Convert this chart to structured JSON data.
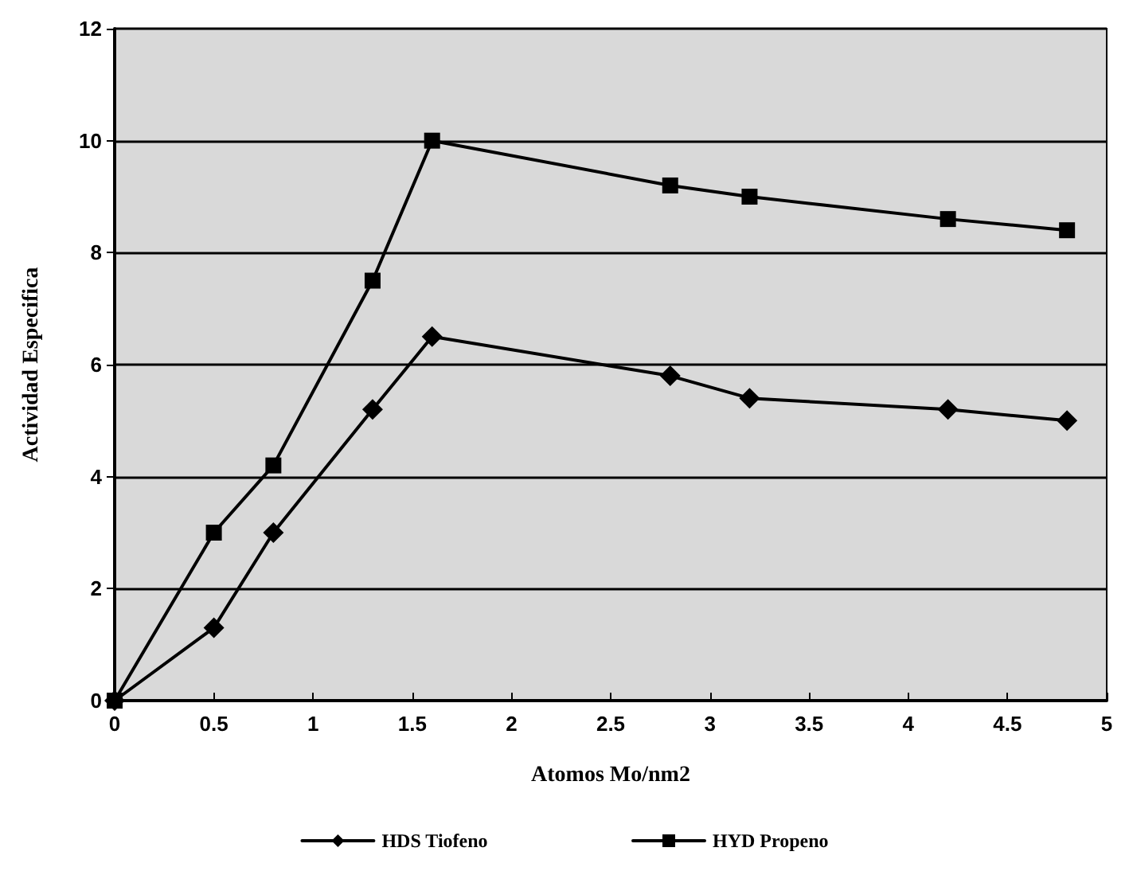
{
  "chart_data": {
    "type": "line",
    "xlabel": "Atomos Mo/nm2",
    "ylabel": "Actividad Especifica",
    "x": [
      0,
      0.5,
      0.8,
      1.3,
      1.6,
      2.8,
      3.2,
      4.2,
      4.8
    ],
    "series": [
      {
        "name": "HDS Tiofeno",
        "color": "#000000",
        "marker": "diamond",
        "values": [
          0,
          1.3,
          3,
          5.2,
          6.5,
          5.8,
          5.4,
          5.2,
          5.0
        ]
      },
      {
        "name": "HYD Propeno",
        "color": "#000000",
        "marker": "square",
        "values": [
          0,
          3,
          4.2,
          7.5,
          10,
          9.2,
          9.0,
          8.6,
          8.4
        ]
      }
    ],
    "xlim": [
      0,
      5
    ],
    "xticks": [
      0,
      0.5,
      1,
      1.5,
      2,
      2.5,
      3,
      3.5,
      4,
      4.5,
      5
    ],
    "ylim": [
      0,
      12
    ],
    "yticks": [
      0,
      2,
      4,
      6,
      8,
      10,
      12
    ],
    "grid": "y",
    "legend": "bottom",
    "line_style": "solid"
  }
}
